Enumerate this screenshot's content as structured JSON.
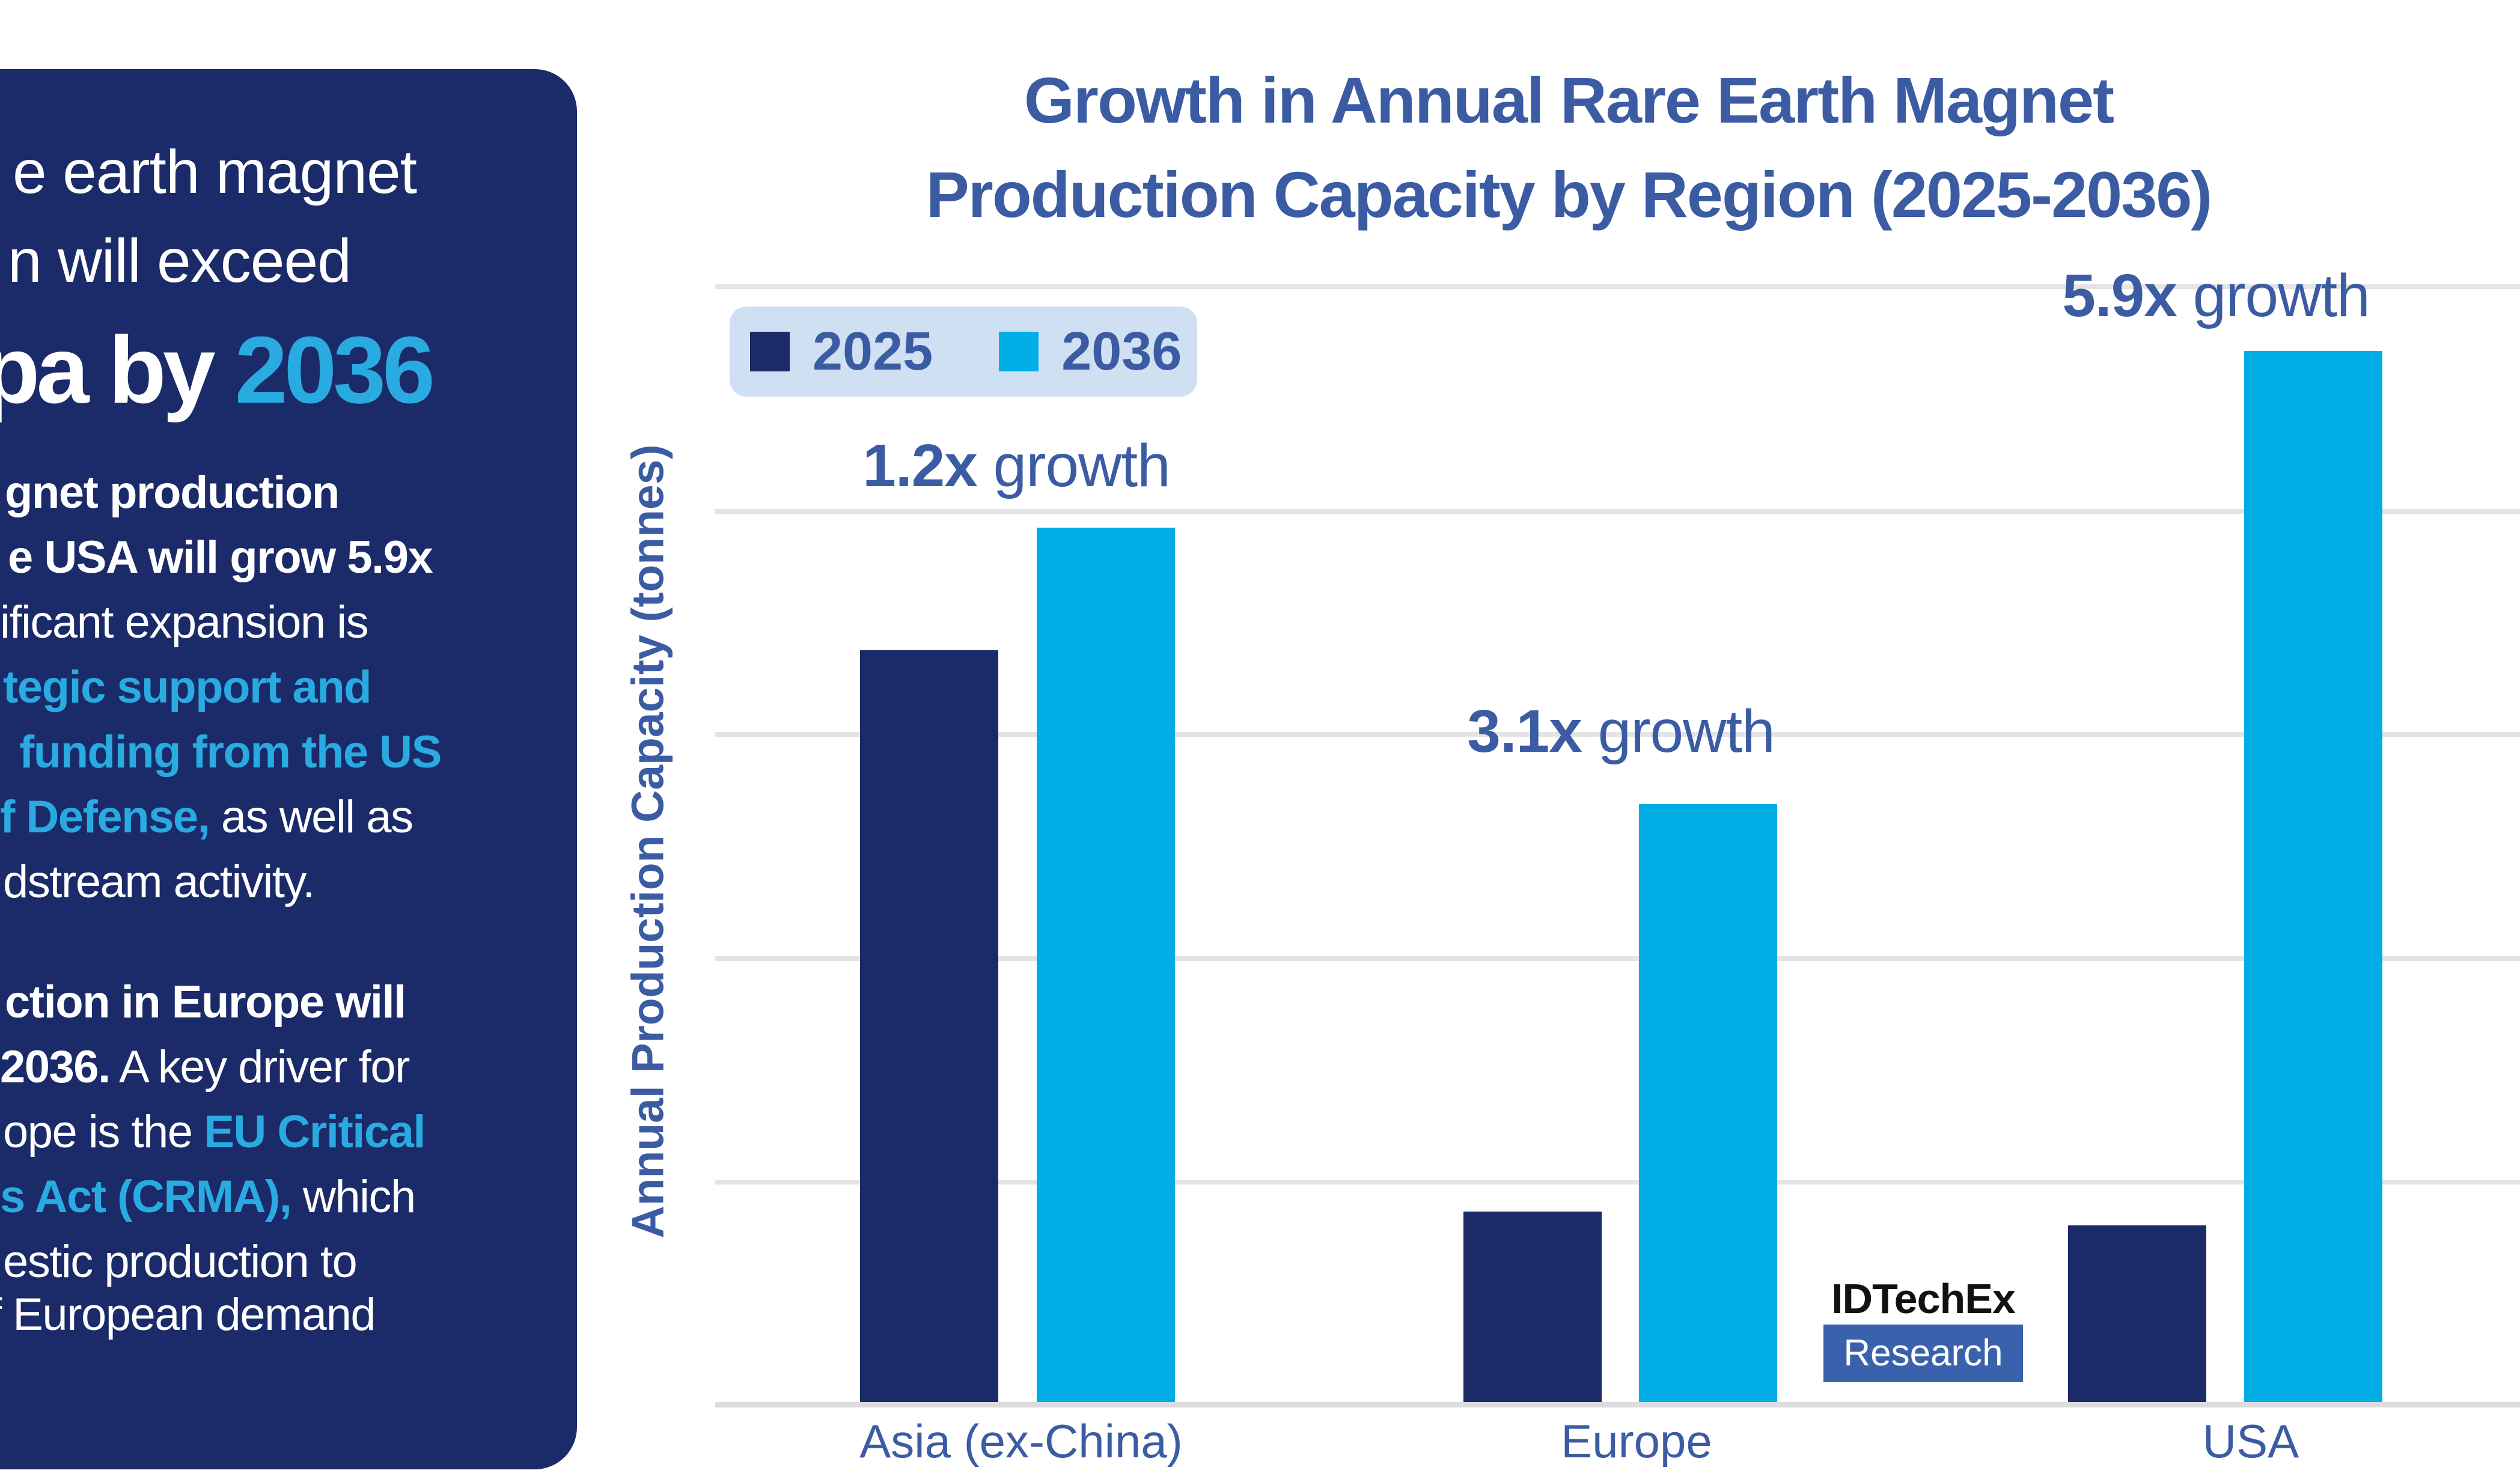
{
  "colors": {
    "sidebar_navy": "#1b2a68",
    "bar_navy_2025": "#1b2a68",
    "bar_cyan_2036": "#00ade4",
    "accent_cyan_text": "#29abe2",
    "blue_text": "#3b5ca3",
    "legend_background": "#cfe0f3",
    "gridline_gray": "#e4e4e7",
    "axis_line_gray": "#dcdcdf",
    "logo_box_blue": "#3a62ac"
  },
  "sidebar": {
    "headline_line1": "e earth magnet",
    "headline_line2": "n will exceed",
    "headline_big_white": "pa by ",
    "headline_big_accent": "2036",
    "para1": {
      "l1": "gnet production",
      "l2": "e USA will grow 5.9x",
      "l3": "ificant expansion is",
      "l4": "tegic support and",
      "l5": "funding from the US",
      "l6a": "f Defense,",
      "l6b": " as well as",
      "l7": "dstream activity."
    },
    "para2": {
      "l1": "ction in Europe will",
      "l2a": "2036.",
      "l2b": " A key driver for",
      "l3a": "ope is the ",
      "l3b": "EU Critical",
      "l4a": "s Act (CRMA),",
      "l4b": " which",
      "l5": "estic production to",
      "l6": "f European demand"
    }
  },
  "chart": {
    "title_line1": "Growth in Annual Rare Earth Magnet",
    "title_line2": "Production Capacity by Region (2025-2036)",
    "logo_line1": "IDTechEx",
    "logo_line2": "Research"
  },
  "chart_data": {
    "type": "bar",
    "title": "Growth in Annual Rare Earth Magnet Production Capacity by Region (2025-2036)",
    "xlabel": "",
    "ylabel": "Annual Production Capacity (tonnes)",
    "categories": [
      "Asia (ex-China)",
      "Europe",
      "USA"
    ],
    "series": [
      {
        "name": "2025",
        "color": "#1b2a68",
        "height_frac": [
          0.715,
          0.181,
          0.168
        ]
      },
      {
        "name": "2036",
        "color": "#00ade4",
        "height_frac": [
          0.832,
          0.569,
          1.0
        ]
      }
    ],
    "growth_annotations": [
      {
        "region": "Asia (ex-China)",
        "multiplier": "1.2x",
        "label": "growth"
      },
      {
        "region": "Europe",
        "multiplier": "3.1x",
        "label": "growth"
      },
      {
        "region": "USA",
        "multiplier": "5.9x",
        "label": "growth"
      }
    ],
    "value_axis_tick_labels": "none shown",
    "gridlines": "5 horizontal light-gray lines, evenly spaced, no frame",
    "legend_position": "top-left inside plot, light-blue rounded box"
  }
}
